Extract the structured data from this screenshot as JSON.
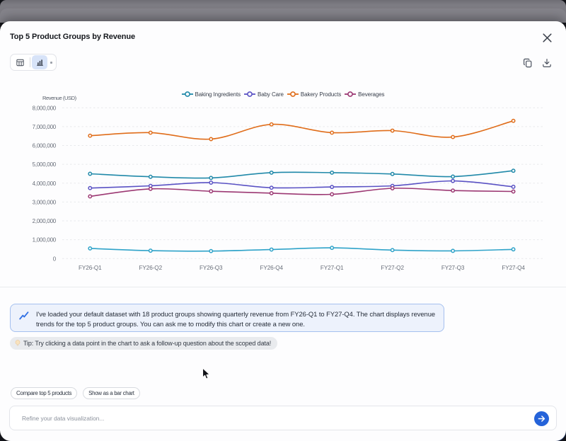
{
  "modal": {
    "title": "Top 5 Product Groups by Revenue",
    "toolbar": {
      "table_view_icon": "table",
      "chart_view_icon": "bar-chart",
      "selected_view": "chart",
      "copy_icon": "copy",
      "download_icon": "download",
      "close_icon": "x"
    }
  },
  "chart_data": {
    "type": "line",
    "title": "Top 5 Product Groups by Revenue",
    "ylabel": "Revenue (USD)",
    "xlabel": "",
    "x": [
      "FY26-Q1",
      "FY26-Q2",
      "FY26-Q3",
      "FY26-Q4",
      "FY27-Q1",
      "FY27-Q2",
      "FY27-Q3",
      "FY27-Q4"
    ],
    "series": [
      {
        "name": "Baking Ingredients",
        "color": "#2089a9",
        "in_legend": true,
        "values": [
          4500000,
          4340000,
          4280000,
          4560000,
          4560000,
          4490000,
          4350000,
          4660000
        ]
      },
      {
        "name": "Baby Care",
        "color": "#5a52c4",
        "in_legend": true,
        "values": [
          3740000,
          3860000,
          4030000,
          3760000,
          3800000,
          3860000,
          4120000,
          3810000
        ]
      },
      {
        "name": "Bakery Products",
        "color": "#e06d1a",
        "in_legend": true,
        "values": [
          6520000,
          6680000,
          6340000,
          7120000,
          6680000,
          6790000,
          6450000,
          7310000
        ]
      },
      {
        "name": "Beverages",
        "color": "#9c3873",
        "in_legend": true,
        "values": [
          3300000,
          3700000,
          3570000,
          3470000,
          3410000,
          3730000,
          3610000,
          3560000
        ]
      },
      {
        "name": "",
        "color": "#2fa3c9",
        "in_legend": false,
        "values": [
          540000,
          420000,
          400000,
          480000,
          570000,
          450000,
          410000,
          490000
        ]
      }
    ],
    "ylim": [
      0,
      8000000
    ],
    "yticks": [
      "8,000,000",
      "7,000,000",
      "6,000,000",
      "5,000,000",
      "4,000,000",
      "3,000,000",
      "2,000,000",
      "1,000,000",
      "0"
    ],
    "grid": "dashed-horizontal",
    "legend_position": "top",
    "marker": "open-circle",
    "smooth": true
  },
  "assistant": {
    "message_lines": [
      "I've loaded your default dataset with 18 product groups showing quarterly revenue from FY26-Q1 to FY27-Q4. The chart displays revenue",
      "trends for the top 5 product groups. You can ask me to modify this chart or create a new one."
    ],
    "message_icon": "trending-up",
    "tip_icon": "lightbulb",
    "tip": "Tip: Try clicking a data point in the chart to ask a follow-up question about the scoped data!"
  },
  "suggestions": [
    {
      "label": "Compare top 5 products"
    },
    {
      "label": "Show as a bar chart"
    }
  ],
  "composer": {
    "placeholder": "Refine your data visualization...",
    "send_icon": "arrow-right"
  },
  "colors": {
    "accent_blue": "#2563d9",
    "message_bg": "#edf2fc",
    "message_border": "#a5c0ef",
    "overlay_gray": "#807f86",
    "selected_toggle_bg": "#d7e3f8"
  }
}
